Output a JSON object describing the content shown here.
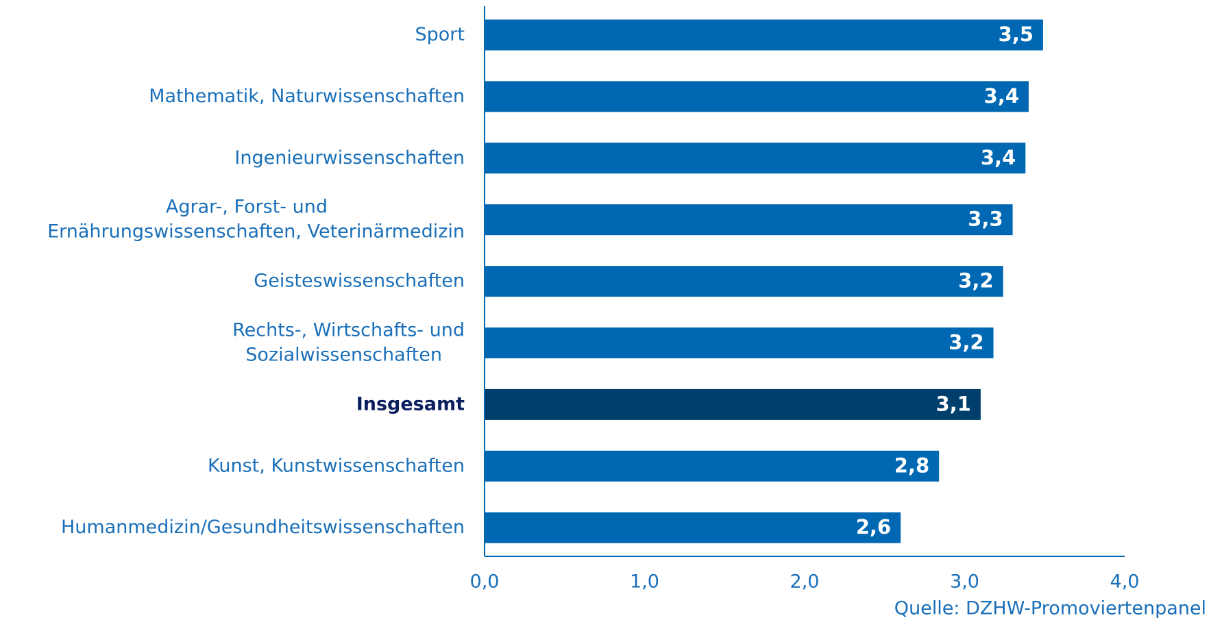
{
  "chart_data": {
    "type": "barh",
    "categories": [
      [
        "Sport"
      ],
      [
        "Mathematik, Naturwissenschaften"
      ],
      [
        "Ingenieurwissenschaften"
      ],
      [
        "Agrar-, Forst- und",
        "Ernährungswissenschaften, Veterinärmedizin"
      ],
      [
        "Geisteswissenschaften"
      ],
      [
        "Rechts-, Wirtschafts- und",
        "Sozialwissenschaften"
      ],
      [
        "Insgesamt"
      ],
      [
        "Kunst, Kunstwissenschaften"
      ],
      [
        "Humanmedizin/Gesundheitswissenschaften"
      ]
    ],
    "values": [
      3.49,
      3.4,
      3.38,
      3.3,
      3.24,
      3.18,
      3.1,
      2.84,
      2.6
    ],
    "value_labels": [
      "3,5",
      "3,4",
      "3,4",
      "3,3",
      "3,2",
      "3,2",
      "3,1",
      "2,8",
      "2,6"
    ],
    "colors": [
      "#0068b2",
      "#0068b2",
      "#0068b2",
      "#0068b2",
      "#0068b2",
      "#0068b2",
      "#003f6c",
      "#0068b2",
      "#0068b2"
    ],
    "bold": [
      false,
      false,
      false,
      false,
      false,
      false,
      true,
      false,
      false
    ],
    "xlim": [
      0,
      4
    ],
    "xticks": [
      {
        "value": 0,
        "label": "0,0"
      },
      {
        "value": 1,
        "label": "1,0"
      },
      {
        "value": 2,
        "label": "2,0"
      },
      {
        "value": 3,
        "label": "3,0"
      },
      {
        "value": 4,
        "label": "4,0"
      }
    ],
    "grid": false,
    "source": "Quelle: DZHW-Promoviertenpanel"
  }
}
